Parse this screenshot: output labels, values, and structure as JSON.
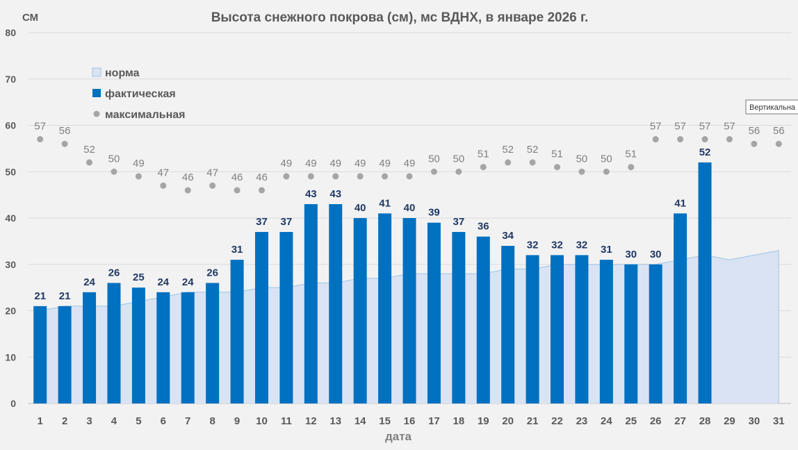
{
  "chart_data": {
    "type": "bar",
    "title": "Высота снежного покрова (см), мс ВДНХ, в январе 2026 г.",
    "ylabel": "СМ",
    "xlabel": "дата",
    "ylim": [
      0,
      80
    ],
    "yticks": [
      0,
      10,
      20,
      30,
      40,
      50,
      60,
      70,
      80
    ],
    "grid": true,
    "legend_position": "top-left",
    "categories": [
      "1",
      "2",
      "3",
      "4",
      "5",
      "6",
      "7",
      "8",
      "9",
      "10",
      "11",
      "12",
      "13",
      "14",
      "15",
      "16",
      "17",
      "18",
      "19",
      "20",
      "21",
      "22",
      "23",
      "24",
      "25",
      "26",
      "27",
      "28",
      "29",
      "30",
      "31"
    ],
    "series": [
      {
        "name": "норма",
        "type": "area",
        "color": "#dae3f3",
        "edge_color": "#9dc3e6",
        "values": [
          20,
          21,
          21,
          21,
          22,
          23,
          24,
          24,
          24,
          25,
          25,
          26,
          26,
          27,
          27,
          28,
          28,
          28,
          28,
          29,
          29,
          30,
          30,
          30,
          30,
          30,
          31,
          32,
          31,
          32,
          33
        ]
      },
      {
        "name": "фактическая",
        "type": "bar",
        "color": "#0070c0",
        "values": [
          21,
          21,
          24,
          26,
          25,
          24,
          24,
          26,
          31,
          37,
          37,
          43,
          43,
          40,
          41,
          40,
          39,
          37,
          36,
          34,
          32,
          32,
          32,
          31,
          30,
          30,
          41,
          52,
          null,
          null,
          null
        ]
      },
      {
        "name": "максимальная",
        "type": "scatter",
        "color": "#a5a5a5",
        "values": [
          57,
          56,
          52,
          50,
          49,
          47,
          46,
          47,
          46,
          46,
          49,
          49,
          49,
          49,
          49,
          49,
          50,
          50,
          51,
          52,
          52,
          51,
          50,
          50,
          51,
          57,
          57,
          57,
          57,
          56,
          56
        ]
      }
    ]
  },
  "tooltip": {
    "text": "Вертикальна"
  }
}
